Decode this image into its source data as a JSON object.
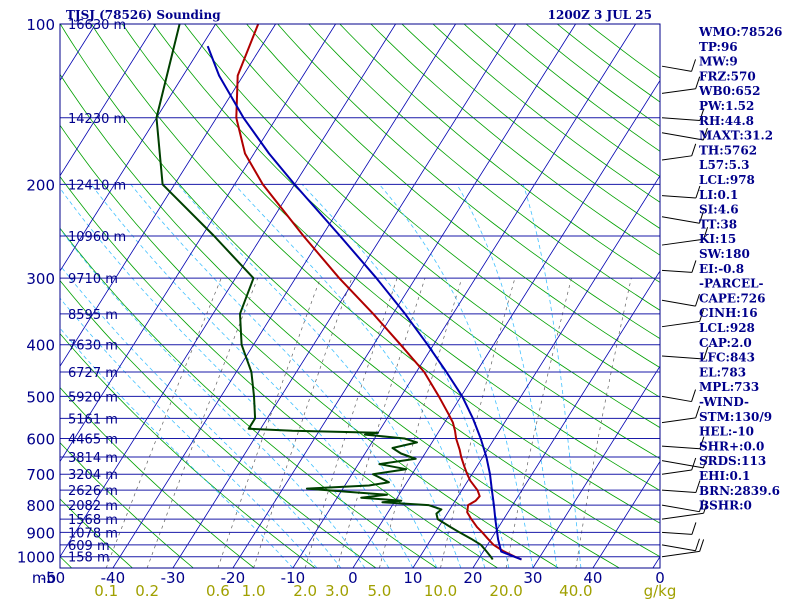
{
  "header": {
    "station": "TJSJ (78526) Sounding",
    "time": "1200Z  3 JUL 25"
  },
  "chart_data": {
    "type": "line",
    "title": "TJSJ (78526) Sounding",
    "subtitle": "1200Z  3 JUL 25",
    "diagram": "skew-T log-P",
    "pressure_axis_label": "mb",
    "pressure_ticks": [
      100,
      200,
      300,
      400,
      500,
      600,
      700,
      800,
      900,
      1000
    ],
    "temperature_ticks": [
      -50,
      -40,
      -30,
      -20,
      -10,
      0,
      10,
      20,
      30,
      40,
      0
    ],
    "mixing_ratio_ticks": [
      "0.1",
      "0.2",
      "0.6",
      "1.0",
      "2.0",
      "3.0",
      "5.0",
      "10.0",
      "20.0",
      "40.0"
    ],
    "mixing_ratio_unit": "g/kg",
    "height_labels": [
      {
        "p": 100,
        "label": "16630 m"
      },
      {
        "p": 150,
        "label": "14230 m"
      },
      {
        "p": 200,
        "label": "12410 m"
      },
      {
        "p": 250,
        "label": "10960 m"
      },
      {
        "p": 300,
        "label": "9710 m"
      },
      {
        "p": 350,
        "label": "8595 m"
      },
      {
        "p": 400,
        "label": "7630 m"
      },
      {
        "p": 450,
        "label": "6727 m"
      },
      {
        "p": 500,
        "label": "5920 m"
      },
      {
        "p": 550,
        "label": "5161 m"
      },
      {
        "p": 600,
        "label": "4465 m"
      },
      {
        "p": 650,
        "label": "3814 m"
      },
      {
        "p": 700,
        "label": "3204 m"
      },
      {
        "p": 750,
        "label": "2626 m"
      },
      {
        "p": 800,
        "label": "2082 m"
      },
      {
        "p": 850,
        "label": "1568 m"
      },
      {
        "p": 900,
        "label": "1078 m"
      },
      {
        "p": 950,
        "label": "609 m"
      },
      {
        "p": 1000,
        "label": "158 m"
      }
    ],
    "series": [
      {
        "name": "temperature",
        "color": "#b00000",
        "points": [
          [
            1012,
            27.2
          ],
          [
            1000,
            25.8
          ],
          [
            975,
            23.2
          ],
          [
            950,
            21.0
          ],
          [
            925,
            19.4
          ],
          [
            900,
            17.8
          ],
          [
            880,
            16.4
          ],
          [
            850,
            14.6
          ],
          [
            825,
            13.2
          ],
          [
            800,
            12.6
          ],
          [
            785,
            13.4
          ],
          [
            770,
            13.6
          ],
          [
            750,
            12.6
          ],
          [
            720,
            10.4
          ],
          [
            700,
            9.2
          ],
          [
            675,
            7.8
          ],
          [
            650,
            6.4
          ],
          [
            630,
            5.4
          ],
          [
            600,
            3.6
          ],
          [
            580,
            2.6
          ],
          [
            560,
            1.4
          ],
          [
            540,
            -0.2
          ],
          [
            500,
            -3.7
          ],
          [
            450,
            -8.7
          ],
          [
            400,
            -15.5
          ],
          [
            350,
            -23.3
          ],
          [
            300,
            -32.7
          ],
          [
            250,
            -43.1
          ],
          [
            200,
            -55.3
          ],
          [
            175,
            -61.5
          ],
          [
            150,
            -66.7
          ],
          [
            125,
            -70.9
          ],
          [
            100,
            -72.9
          ]
        ]
      },
      {
        "name": "dewpoint",
        "color": "#004000",
        "points": [
          [
            1012,
            22.4
          ],
          [
            1000,
            21.8
          ],
          [
            975,
            20.4
          ],
          [
            950,
            18.9
          ],
          [
            925,
            16.6
          ],
          [
            900,
            14.0
          ],
          [
            880,
            12.0
          ],
          [
            850,
            9.0
          ],
          [
            830,
            8.2
          ],
          [
            815,
            8.6
          ],
          [
            800,
            6.0
          ],
          [
            790,
            -2.0
          ],
          [
            785,
            1.0
          ],
          [
            775,
            -6.0
          ],
          [
            765,
            -2.0
          ],
          [
            755,
            -9.0
          ],
          [
            745,
            -16.0
          ],
          [
            735,
            -6.0
          ],
          [
            725,
            -3.0
          ],
          [
            700,
            -6.5
          ],
          [
            685,
            -1.5
          ],
          [
            670,
            -6.5
          ],
          [
            655,
            -1.0
          ],
          [
            640,
            -4.0
          ],
          [
            625,
            -6.0
          ],
          [
            610,
            -2.5
          ],
          [
            600,
            -5.0
          ],
          [
            590,
            -12.0
          ],
          [
            585,
            -10.0
          ],
          [
            580,
            -24.5
          ],
          [
            575,
            -32.0
          ],
          [
            550,
            -32.0
          ],
          [
            500,
            -34.5
          ],
          [
            450,
            -37.5
          ],
          [
            400,
            -42.0
          ],
          [
            350,
            -45.5
          ],
          [
            300,
            -47.0
          ],
          [
            250,
            -58.0
          ],
          [
            200,
            -72.0
          ],
          [
            150,
            -80.0
          ],
          [
            100,
            -86.0
          ]
        ]
      },
      {
        "name": "parcel",
        "color": "#0000b0",
        "points": [
          [
            1012,
            27.2
          ],
          [
            978,
            23.0
          ],
          [
            928,
            21.2
          ],
          [
            850,
            18.6
          ],
          [
            800,
            16.9
          ],
          [
            750,
            15.0
          ],
          [
            700,
            13.0
          ],
          [
            650,
            10.6
          ],
          [
            600,
            7.7
          ],
          [
            550,
            4.3
          ],
          [
            500,
            0.2
          ],
          [
            450,
            -5.0
          ],
          [
            400,
            -11.0
          ],
          [
            350,
            -18.0
          ],
          [
            300,
            -26.5
          ],
          [
            250,
            -37.0
          ],
          [
            200,
            -50.0
          ],
          [
            175,
            -57.5
          ],
          [
            150,
            -65.5
          ],
          [
            125,
            -74.0
          ],
          [
            110,
            -79.0
          ]
        ]
      }
    ],
    "wind_barbs_p": [
      120,
      135,
      150,
      160,
      180,
      210,
      230,
      260,
      290,
      330,
      370,
      420,
      500,
      560,
      620,
      660,
      700,
      750,
      800,
      850,
      900,
      950,
      1000
    ],
    "indices": [
      "WMO:78526",
      "TP:96",
      "MW:9",
      "FRZ:570",
      "WB0:652",
      "PW:1.52",
      "RH:44.8",
      "MAXT:31.2",
      "TH:5762",
      "L57:5.3",
      "LCL:978",
      "LI:0.1",
      "SI:4.6",
      "TT:38",
      "KI:15",
      "SW:180",
      "EI:-0.8",
      "-PARCEL-",
      "CAPE:726",
      "CINH:16",
      "LCL:928",
      "CAP:2.0",
      "LFC:843",
      "EL:783",
      "MPL:733",
      "-WIND-",
      "STM:130/9",
      "HEL:-10",
      "SHR+:0.0",
      "SRDS:113",
      "EHI:0.1",
      "BRN:2839.6",
      "BSHR:0"
    ]
  },
  "colors": {
    "axes": "#00008b",
    "isobar": "#1a1aa8",
    "isotherm": "#0000b0",
    "dry_adiabat": "#00a000",
    "moist_adiabat": "#40c0ff",
    "mixing_ratio": "#606060",
    "mixing_label": "#a0a000"
  }
}
